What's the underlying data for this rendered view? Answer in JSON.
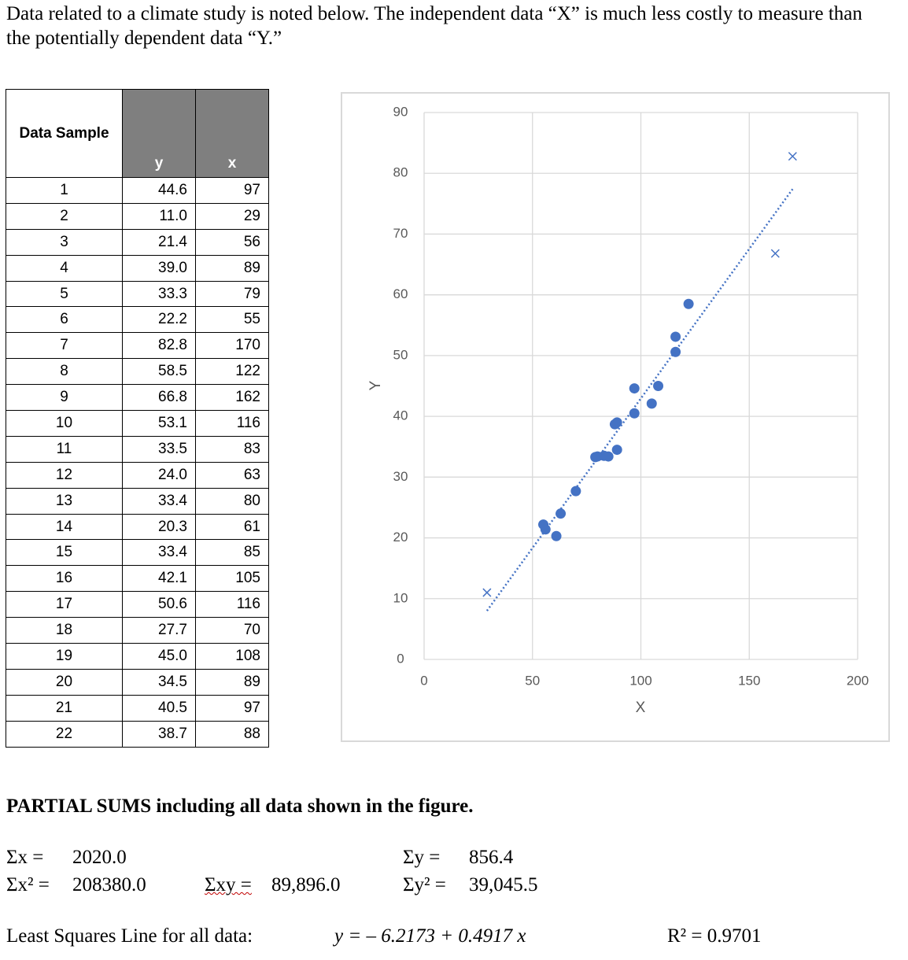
{
  "intro": "Data related to a climate study is noted below.  The independent data “X” is much less costly to measure than the potentially dependent data “Y.”",
  "table": {
    "header": [
      "Data Sample",
      "y",
      "x"
    ],
    "rows": [
      [
        "1",
        "44.6",
        "97"
      ],
      [
        "2",
        "11.0",
        "29"
      ],
      [
        "3",
        "21.4",
        "56"
      ],
      [
        "4",
        "39.0",
        "89"
      ],
      [
        "5",
        "33.3",
        "79"
      ],
      [
        "6",
        "22.2",
        "55"
      ],
      [
        "7",
        "82.8",
        "170"
      ],
      [
        "8",
        "58.5",
        "122"
      ],
      [
        "9",
        "66.8",
        "162"
      ],
      [
        "10",
        "53.1",
        "116"
      ],
      [
        "11",
        "33.5",
        "83"
      ],
      [
        "12",
        "24.0",
        "63"
      ],
      [
        "13",
        "33.4",
        "80"
      ],
      [
        "14",
        "20.3",
        "61"
      ],
      [
        "15",
        "33.4",
        "85"
      ],
      [
        "16",
        "42.1",
        "105"
      ],
      [
        "17",
        "50.6",
        "116"
      ],
      [
        "18",
        "27.7",
        "70"
      ],
      [
        "19",
        "45.0",
        "108"
      ],
      [
        "20",
        "34.5",
        "89"
      ],
      [
        "21",
        "40.5",
        "97"
      ],
      [
        "22",
        "38.7",
        "88"
      ]
    ]
  },
  "chart_data": {
    "type": "scatter",
    "xlabel": "X",
    "ylabel": "Y",
    "xlim": [
      0,
      200
    ],
    "ylim": [
      0,
      90
    ],
    "xticks": [
      0,
      50,
      100,
      150,
      200
    ],
    "yticks": [
      0,
      10,
      20,
      30,
      40,
      50,
      60,
      70,
      80,
      90
    ],
    "grid": true,
    "series": [
      {
        "color": "#4472c4",
        "marker": "circle",
        "x": [
          97,
          56,
          89,
          79,
          55,
          122,
          116,
          83,
          63,
          80,
          61,
          85,
          105,
          116,
          70,
          108,
          89,
          97,
          88
        ],
        "values": [
          44.6,
          21.4,
          39.0,
          33.3,
          22.2,
          58.5,
          53.1,
          33.5,
          24.0,
          33.4,
          20.3,
          33.4,
          42.1,
          50.6,
          27.7,
          45.0,
          34.5,
          40.5,
          38.7
        ]
      },
      {
        "color": "#4472c4",
        "marker": "x",
        "x": [
          29,
          162,
          170
        ],
        "values": [
          11.0,
          66.8,
          82.8
        ]
      },
      {
        "color": "#4472c4",
        "marker": "none",
        "line": "dotted",
        "x": [
          29,
          170
        ],
        "values": [
          8.0,
          77.4
        ]
      }
    ]
  },
  "sums": {
    "title": "PARTIAL SUMS including all data shown in the figure.",
    "sx_label": "Σx =",
    "sx": "2020.0",
    "sx2_label": "Σx² =",
    "sx2": "208380.0",
    "sxy_label": "Σxy =",
    "sxy": "89,896.0",
    "sy_label": "Σy =",
    "sy": "856.4",
    "sy2_label": "Σy² =",
    "sy2": "39,045.5",
    "lsq_label": "Least Squares Line for all data:",
    "lsq": "y = – 6.2173 + 0.4917 x",
    "r2": "R² = 0.9701"
  }
}
